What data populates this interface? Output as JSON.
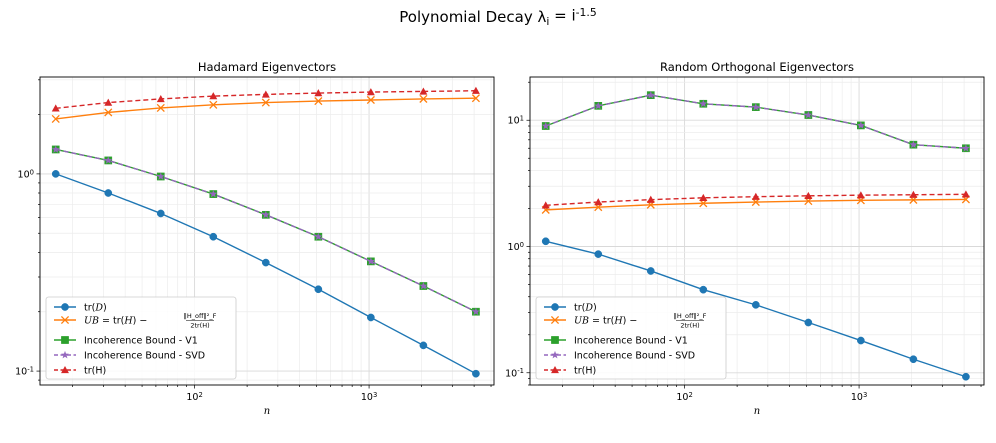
{
  "figure": {
    "suptitle": "Polynomial Decay λ_i = i^{-1.5}"
  },
  "chart_data": [
    {
      "type": "line",
      "title": "Hadamard Eigenvectors",
      "xlabel": "n",
      "ylabel": "",
      "xscale": "log",
      "yscale": "log",
      "xlim": [
        13,
        5200
      ],
      "ylim": [
        0.085,
        3.1
      ],
      "grid": true,
      "legend_position": "lower-left",
      "x": [
        16,
        32,
        64,
        128,
        256,
        512,
        1024,
        2048,
        4096
      ],
      "x_ticks": [
        {
          "value": 100,
          "label": "10^2"
        },
        {
          "value": 1000,
          "label": "10^3"
        }
      ],
      "y_ticks": [
        {
          "value": 0.1,
          "label": "10^{-1}"
        },
        {
          "value": 1,
          "label": "10^0"
        }
      ],
      "series": [
        {
          "name": "tr(D)",
          "color": "#1f77b4",
          "marker": "circle",
          "dash": "solid",
          "values": [
            1.0,
            0.8,
            0.63,
            0.48,
            0.355,
            0.26,
            0.187,
            0.135,
            0.097
          ]
        },
        {
          "name": "UB = tr(H) − ||H_off||_F^2 / 2tr(H)",
          "color": "#ff7f0e",
          "marker": "x",
          "dash": "solid",
          "values": [
            1.9,
            2.05,
            2.16,
            2.24,
            2.3,
            2.34,
            2.37,
            2.4,
            2.42
          ]
        },
        {
          "name": "Incoherence Bound - V1",
          "color": "#2ca02c",
          "marker": "square",
          "dash": "solid",
          "values": [
            1.33,
            1.17,
            0.97,
            0.79,
            0.62,
            0.48,
            0.36,
            0.27,
            0.2
          ]
        },
        {
          "name": "Incoherence Bound - SVD",
          "color": "#9467bd",
          "marker": "star",
          "dash": "dashed",
          "values": [
            1.33,
            1.17,
            0.97,
            0.79,
            0.62,
            0.48,
            0.36,
            0.27,
            0.2
          ]
        },
        {
          "name": "tr(H)",
          "color": "#d62728",
          "marker": "triangle",
          "dash": "dashed",
          "values": [
            2.15,
            2.3,
            2.4,
            2.48,
            2.53,
            2.57,
            2.6,
            2.62,
            2.64
          ]
        }
      ]
    },
    {
      "type": "line",
      "title": "Random Orthogonal Eigenvectors",
      "xlabel": "n",
      "ylabel": "",
      "xscale": "log",
      "yscale": "log",
      "xlim": [
        13,
        5200
      ],
      "ylim": [
        0.08,
        22
      ],
      "grid": true,
      "legend_position": "lower-left",
      "x": [
        16,
        32,
        64,
        128,
        256,
        512,
        1024,
        2048,
        4096
      ],
      "x_ticks": [
        {
          "value": 100,
          "label": "10^2"
        },
        {
          "value": 1000,
          "label": "10^3"
        }
      ],
      "y_ticks": [
        {
          "value": 0.1,
          "label": "10^{-1}"
        },
        {
          "value": 1,
          "label": "10^0"
        },
        {
          "value": 10,
          "label": "10^1"
        }
      ],
      "series": [
        {
          "name": "tr(D)",
          "color": "#1f77b4",
          "marker": "circle",
          "dash": "solid",
          "values": [
            1.1,
            0.87,
            0.64,
            0.455,
            0.345,
            0.25,
            0.18,
            0.128,
            0.093
          ]
        },
        {
          "name": "UB = tr(H) − ||H_off||_F^2 / 2tr(H)",
          "color": "#ff7f0e",
          "marker": "x",
          "dash": "solid",
          "values": [
            1.95,
            2.05,
            2.14,
            2.2,
            2.25,
            2.29,
            2.32,
            2.34,
            2.36
          ]
        },
        {
          "name": "Incoherence Bound - V1",
          "color": "#2ca02c",
          "marker": "square",
          "dash": "solid",
          "values": [
            9.0,
            13.0,
            15.8,
            13.5,
            12.7,
            11.0,
            9.1,
            6.4,
            6.0
          ]
        },
        {
          "name": "Incoherence Bound - SVD",
          "color": "#9467bd",
          "marker": "star",
          "dash": "dashed",
          "values": [
            9.0,
            13.0,
            15.8,
            13.5,
            12.7,
            11.0,
            9.1,
            6.4,
            6.0
          ]
        },
        {
          "name": "tr(H)",
          "color": "#d62728",
          "marker": "triangle",
          "dash": "dashed",
          "values": [
            2.12,
            2.25,
            2.35,
            2.43,
            2.48,
            2.52,
            2.55,
            2.57,
            2.59
          ]
        }
      ]
    }
  ]
}
